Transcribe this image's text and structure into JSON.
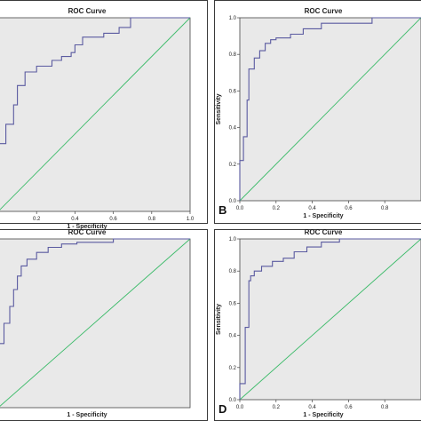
{
  "colors": {
    "roc_curve": "#5a5aa0",
    "reference_line": "#3dbb6a"
  },
  "chart_data": [
    {
      "type": "line",
      "panel": "A",
      "title": "ROC Curve",
      "xlabel": "1 - Specificity",
      "ylabel": "",
      "xlim": [
        0,
        1
      ],
      "ylim": [
        0,
        1
      ],
      "x_ticks": [
        "0.2",
        "0.4",
        "0.6",
        "0.8",
        "1.0"
      ],
      "y_ticks": [],
      "show_y_ticks": false,
      "letter": "",
      "grid": false,
      "series": [
        {
          "x": [
            0,
            0,
            0.04,
            0.04,
            0.08,
            0.08,
            0.1,
            0.1,
            0.14,
            0.14,
            0.2,
            0.2,
            0.28,
            0.28,
            0.33,
            0.33,
            0.38,
            0.38,
            0.4,
            0.4,
            0.44,
            0.44,
            0.55,
            0.55,
            0.63,
            0.63,
            0.69,
            0.69,
            1.0
          ],
          "y": [
            0,
            0.35,
            0.35,
            0.45,
            0.45,
            0.55,
            0.55,
            0.65,
            0.65,
            0.72,
            0.72,
            0.75,
            0.75,
            0.78,
            0.78,
            0.8,
            0.8,
            0.82,
            0.82,
            0.86,
            0.86,
            0.9,
            0.9,
            0.92,
            0.92,
            0.95,
            0.95,
            1.0,
            1.0
          ]
        },
        {
          "x": [
            0,
            1
          ],
          "y": [
            0,
            1
          ]
        }
      ]
    },
    {
      "type": "line",
      "panel": "B",
      "title": "ROC Curve",
      "xlabel": "1 - Specificity",
      "ylabel": "Sensitivity",
      "xlim": [
        0,
        1
      ],
      "ylim": [
        0,
        1
      ],
      "x_ticks": [
        "0.0",
        "0.2",
        "0.4",
        "0.6",
        "0.8"
      ],
      "y_ticks": [
        "0.0",
        "0.2",
        "0.4",
        "0.6",
        "0.8",
        "1.0"
      ],
      "show_y_ticks": true,
      "letter": "B",
      "grid": false,
      "series": [
        {
          "x": [
            0,
            0,
            0.02,
            0.02,
            0.04,
            0.04,
            0.05,
            0.05,
            0.08,
            0.08,
            0.11,
            0.11,
            0.14,
            0.14,
            0.17,
            0.17,
            0.2,
            0.2,
            0.28,
            0.28,
            0.35,
            0.35,
            0.45,
            0.45,
            0.73,
            0.73,
            1.0
          ],
          "y": [
            0,
            0.22,
            0.22,
            0.35,
            0.35,
            0.55,
            0.55,
            0.72,
            0.72,
            0.78,
            0.78,
            0.82,
            0.82,
            0.86,
            0.86,
            0.88,
            0.88,
            0.89,
            0.89,
            0.91,
            0.91,
            0.94,
            0.94,
            0.97,
            0.97,
            1.0,
            1.0
          ]
        },
        {
          "x": [
            0,
            1
          ],
          "y": [
            0,
            1
          ]
        }
      ]
    },
    {
      "type": "line",
      "panel": "C",
      "title": "ROC Curve",
      "xlabel": "1 - Specificity",
      "ylabel": "",
      "xlim": [
        0,
        1
      ],
      "ylim": [
        0,
        1
      ],
      "x_ticks": [],
      "y_ticks": [],
      "show_y_ticks": false,
      "letter": "",
      "grid": false,
      "series": [
        {
          "x": [
            0,
            0,
            0.03,
            0.03,
            0.06,
            0.06,
            0.08,
            0.08,
            0.1,
            0.1,
            0.12,
            0.12,
            0.15,
            0.15,
            0.2,
            0.2,
            0.26,
            0.26,
            0.33,
            0.33,
            0.41,
            0.41,
            0.6,
            0.6,
            1.0
          ],
          "y": [
            0,
            0.38,
            0.38,
            0.5,
            0.5,
            0.6,
            0.6,
            0.7,
            0.7,
            0.78,
            0.78,
            0.84,
            0.84,
            0.88,
            0.88,
            0.92,
            0.92,
            0.95,
            0.95,
            0.97,
            0.97,
            0.98,
            0.98,
            1.0,
            1.0
          ]
        },
        {
          "x": [
            0,
            1
          ],
          "y": [
            0,
            1
          ]
        }
      ]
    },
    {
      "type": "line",
      "panel": "D",
      "title": "ROC Curve",
      "xlabel": "1 - Specificity",
      "ylabel": "Sensitivity",
      "xlim": [
        0,
        1
      ],
      "ylim": [
        0,
        1
      ],
      "x_ticks": [
        "0.0",
        "0.2",
        "0.4",
        "0.6",
        "0.8"
      ],
      "y_ticks": [
        "0.0",
        "0.2",
        "0.4",
        "0.6",
        "0.8",
        "1.0"
      ],
      "show_y_ticks": true,
      "letter": "D",
      "grid": false,
      "series": [
        {
          "x": [
            0,
            0,
            0.03,
            0.03,
            0.05,
            0.05,
            0.06,
            0.06,
            0.08,
            0.08,
            0.12,
            0.12,
            0.18,
            0.18,
            0.24,
            0.24,
            0.3,
            0.3,
            0.37,
            0.37,
            0.45,
            0.45,
            0.55,
            0.55,
            1.0
          ],
          "y": [
            0,
            0.1,
            0.1,
            0.45,
            0.45,
            0.74,
            0.74,
            0.77,
            0.77,
            0.8,
            0.8,
            0.83,
            0.83,
            0.86,
            0.86,
            0.88,
            0.88,
            0.92,
            0.92,
            0.95,
            0.95,
            0.98,
            0.98,
            1.0,
            1.0
          ]
        },
        {
          "x": [
            0,
            1
          ],
          "y": [
            0,
            1
          ]
        }
      ]
    }
  ]
}
